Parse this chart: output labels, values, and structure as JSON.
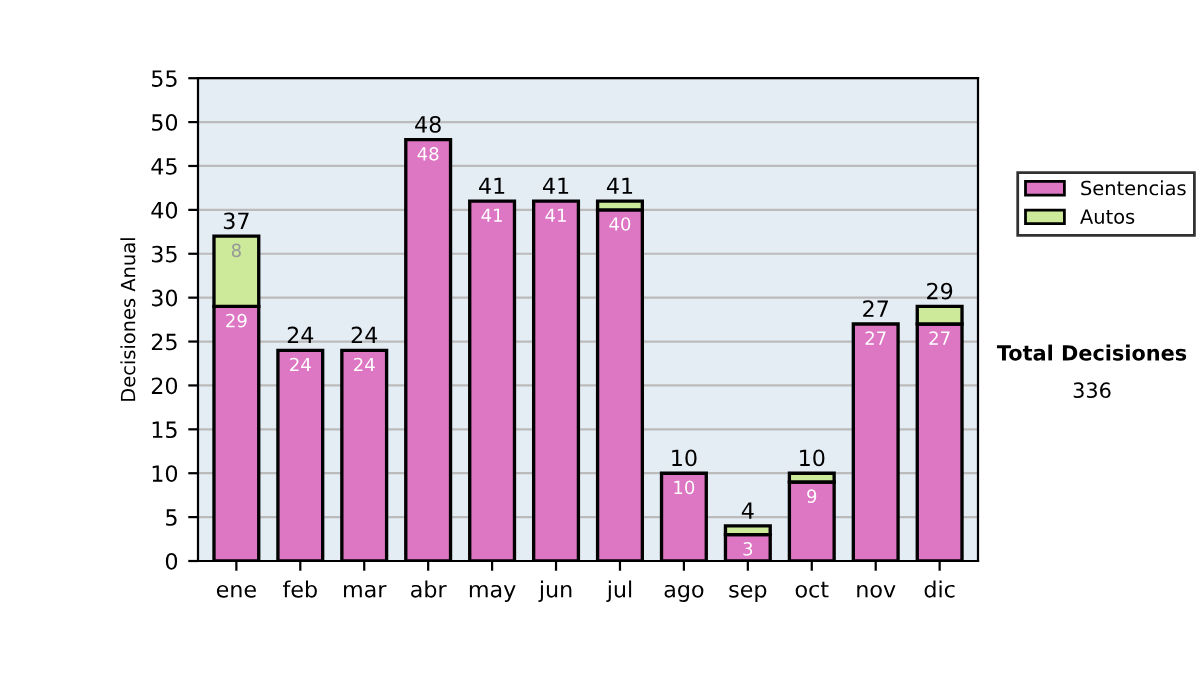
{
  "chart_data": {
    "type": "bar",
    "stacked": true,
    "ylabel": "Decisiones Anual",
    "categories": [
      "ene",
      "feb",
      "mar",
      "abr",
      "may",
      "jun",
      "jul",
      "ago",
      "sep",
      "oct",
      "nov",
      "dic"
    ],
    "series": [
      {
        "name": "Sentencias",
        "color": "#dd77c4",
        "values": [
          29,
          24,
          24,
          48,
          41,
          41,
          40,
          10,
          3,
          9,
          27,
          27
        ],
        "value_labels": [
          "29",
          "24",
          "24",
          "48",
          "41",
          "41",
          "40",
          "10",
          "3",
          "9",
          "27",
          "27"
        ]
      },
      {
        "name": "Autos",
        "color": "#ccea99",
        "values": [
          8,
          null,
          null,
          null,
          null,
          null,
          1,
          null,
          1,
          1,
          null,
          2
        ],
        "value_labels": [
          "8",
          null,
          null,
          null,
          null,
          null,
          null,
          null,
          null,
          null,
          null,
          null
        ]
      }
    ],
    "totals": [
      "37",
      "24",
      "24",
      "48",
      "41",
      "41",
      "41",
      "10",
      "4",
      "10",
      "27",
      "29"
    ],
    "ylim": [
      0,
      55
    ],
    "yticks": [
      0,
      5,
      10,
      15,
      20,
      25,
      30,
      35,
      40,
      45,
      50,
      55
    ],
    "grid": "y",
    "legend": "right",
    "annotations": [
      "Total Decisiones",
      "336"
    ]
  }
}
